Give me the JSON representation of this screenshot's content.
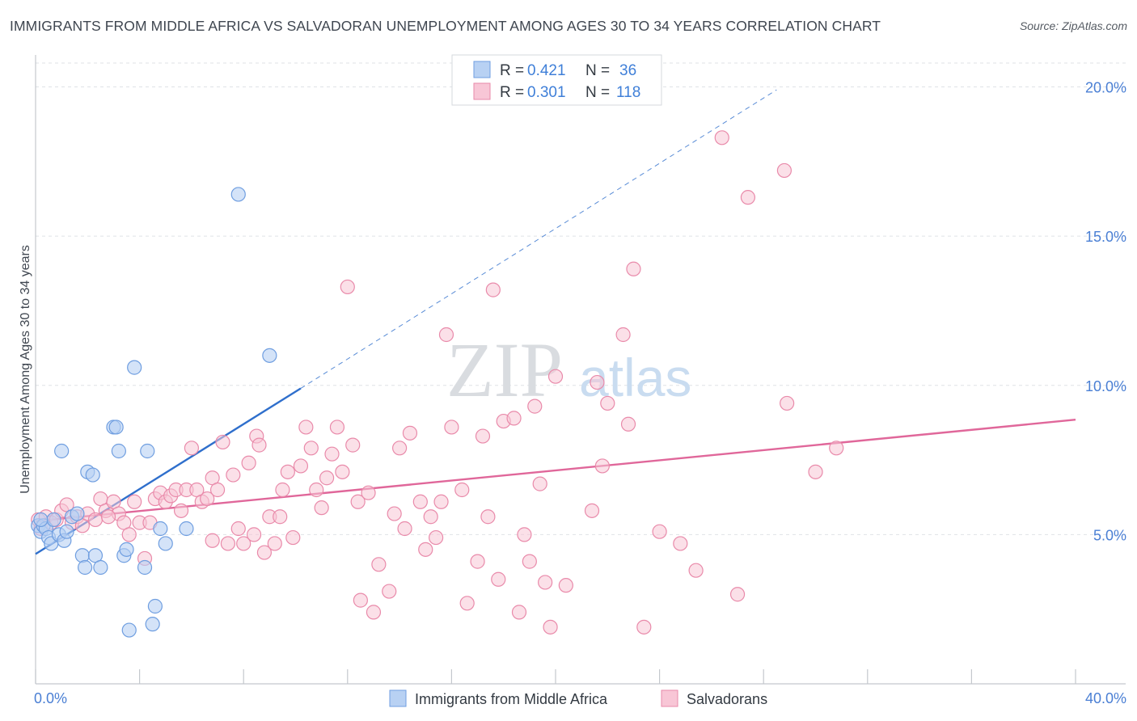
{
  "title": "IMMIGRANTS FROM MIDDLE AFRICA VS SALVADORAN UNEMPLOYMENT AMONG AGES 30 TO 34 YEARS CORRELATION CHART",
  "source": "Source: ZipAtlas.com",
  "watermark": {
    "zip": "ZIP",
    "atlas": "atlas"
  },
  "legend": {
    "r_label": "R =",
    "n_label": "N =",
    "rows": [
      {
        "r": "0.421",
        "n": "36"
      },
      {
        "r": "0.301",
        "n": "118"
      }
    ]
  },
  "colors": {
    "blue_fill": "#b8d1f3",
    "blue_stroke": "#6f9ee0",
    "blue_line": "#2f6fcc",
    "pink_fill": "#f8c6d6",
    "pink_stroke": "#e98aaa",
    "pink_line": "#e0679a",
    "grid": "#dfe2e6",
    "tick_text": "#4a7fd4"
  },
  "chart_data": {
    "type": "scatter",
    "xlabel": "",
    "ylabel": "Unemployment Among Ages 30 to 34 years",
    "xlim": [
      0,
      40
    ],
    "ylim": [
      0,
      20.8
    ],
    "x_tick_labels": [
      {
        "value": 0,
        "label": "0.0%"
      },
      {
        "value": 40,
        "label": "40.0%"
      }
    ],
    "x_minor_ticks": [
      0,
      4,
      8,
      12,
      16,
      20,
      24,
      28,
      32,
      36,
      40
    ],
    "y_ticks": [
      {
        "value": 5,
        "label": "5.0%"
      },
      {
        "value": 10,
        "label": "10.0%"
      },
      {
        "value": 15,
        "label": "15.0%"
      },
      {
        "value": 20,
        "label": "20.0%"
      }
    ],
    "series": [
      {
        "name": "Immigrants from Middle Africa",
        "color": "blue",
        "trend": {
          "x0": 0,
          "y0": 4.35,
          "x1": 10.2,
          "y1": 9.9,
          "dash_to_x": 28.5,
          "dash_to_y": 19.9
        },
        "points": [
          [
            0.1,
            5.3
          ],
          [
            0.2,
            5.1
          ],
          [
            0.3,
            5.3
          ],
          [
            0.4,
            5.2
          ],
          [
            0.5,
            4.9
          ],
          [
            0.6,
            4.7
          ],
          [
            0.7,
            5.5
          ],
          [
            0.9,
            5.0
          ],
          [
            1.0,
            7.8
          ],
          [
            1.1,
            4.8
          ],
          [
            1.4,
            5.6
          ],
          [
            1.6,
            5.7
          ],
          [
            1.8,
            4.3
          ],
          [
            1.9,
            3.9
          ],
          [
            2.0,
            7.1
          ],
          [
            2.2,
            7.0
          ],
          [
            2.3,
            4.3
          ],
          [
            2.5,
            3.9
          ],
          [
            3.0,
            8.6
          ],
          [
            3.1,
            8.6
          ],
          [
            3.2,
            7.8
          ],
          [
            3.4,
            4.3
          ],
          [
            3.5,
            4.5
          ],
          [
            3.8,
            10.6
          ],
          [
            3.6,
            1.8
          ],
          [
            4.2,
            3.9
          ],
          [
            4.3,
            7.8
          ],
          [
            4.6,
            2.6
          ],
          [
            4.8,
            5.2
          ],
          [
            5.0,
            4.7
          ],
          [
            4.5,
            2.0
          ],
          [
            5.8,
            5.2
          ],
          [
            7.8,
            16.4
          ],
          [
            9.0,
            11.0
          ],
          [
            0.2,
            5.5
          ],
          [
            1.2,
            5.1
          ]
        ]
      },
      {
        "name": "Salvadorans",
        "color": "pink",
        "trend": {
          "x0": 0,
          "y0": 5.45,
          "x1": 40,
          "y1": 8.85
        },
        "points": [
          [
            0.1,
            5.5
          ],
          [
            0.2,
            5.2
          ],
          [
            0.4,
            5.6
          ],
          [
            0.6,
            5.4
          ],
          [
            0.8,
            5.5
          ],
          [
            1.0,
            5.8
          ],
          [
            1.2,
            6.0
          ],
          [
            1.4,
            5.4
          ],
          [
            1.6,
            5.6
          ],
          [
            1.8,
            5.3
          ],
          [
            2.0,
            5.7
          ],
          [
            2.3,
            5.5
          ],
          [
            2.5,
            6.2
          ],
          [
            2.7,
            5.8
          ],
          [
            3.0,
            6.1
          ],
          [
            3.2,
            5.7
          ],
          [
            3.4,
            5.4
          ],
          [
            3.6,
            5.0
          ],
          [
            3.8,
            6.1
          ],
          [
            4.0,
            5.4
          ],
          [
            4.2,
            4.2
          ],
          [
            4.4,
            5.4
          ],
          [
            4.6,
            6.2
          ],
          [
            4.8,
            6.4
          ],
          [
            5.0,
            6.1
          ],
          [
            5.2,
            6.3
          ],
          [
            5.4,
            6.5
          ],
          [
            5.6,
            5.8
          ],
          [
            5.8,
            6.5
          ],
          [
            6.0,
            7.9
          ],
          [
            6.2,
            6.5
          ],
          [
            6.4,
            6.1
          ],
          [
            6.6,
            6.2
          ],
          [
            6.8,
            6.9
          ],
          [
            7.0,
            6.5
          ],
          [
            7.2,
            8.1
          ],
          [
            7.4,
            4.7
          ],
          [
            7.6,
            7.0
          ],
          [
            7.8,
            5.2
          ],
          [
            8.0,
            4.7
          ],
          [
            8.2,
            7.4
          ],
          [
            8.5,
            8.3
          ],
          [
            8.6,
            8.0
          ],
          [
            8.8,
            4.4
          ],
          [
            9.0,
            5.6
          ],
          [
            9.2,
            4.7
          ],
          [
            9.5,
            6.5
          ],
          [
            9.7,
            7.1
          ],
          [
            9.9,
            4.9
          ],
          [
            10.2,
            7.3
          ],
          [
            10.4,
            8.6
          ],
          [
            10.6,
            7.9
          ],
          [
            10.8,
            6.5
          ],
          [
            11.0,
            5.9
          ],
          [
            11.2,
            6.9
          ],
          [
            11.4,
            7.7
          ],
          [
            11.6,
            8.6
          ],
          [
            11.8,
            7.1
          ],
          [
            12.0,
            13.3
          ],
          [
            12.2,
            8.0
          ],
          [
            12.4,
            6.1
          ],
          [
            12.8,
            6.4
          ],
          [
            13.2,
            4.0
          ],
          [
            13.6,
            3.1
          ],
          [
            13.8,
            5.7
          ],
          [
            14.0,
            7.9
          ],
          [
            14.2,
            5.2
          ],
          [
            14.4,
            8.4
          ],
          [
            14.8,
            6.1
          ],
          [
            15.0,
            4.5
          ],
          [
            15.2,
            5.6
          ],
          [
            15.4,
            4.9
          ],
          [
            15.6,
            6.1
          ],
          [
            15.8,
            11.7
          ],
          [
            16.0,
            8.6
          ],
          [
            16.4,
            6.5
          ],
          [
            16.6,
            2.7
          ],
          [
            17.0,
            4.1
          ],
          [
            17.2,
            8.3
          ],
          [
            17.4,
            5.6
          ],
          [
            17.6,
            13.2
          ],
          [
            17.8,
            3.5
          ],
          [
            18.0,
            8.8
          ],
          [
            18.4,
            8.9
          ],
          [
            18.8,
            5.0
          ],
          [
            19.0,
            4.1
          ],
          [
            19.2,
            9.3
          ],
          [
            19.4,
            6.7
          ],
          [
            19.6,
            3.4
          ],
          [
            20.0,
            10.3
          ],
          [
            20.4,
            3.3
          ],
          [
            21.4,
            5.8
          ],
          [
            21.6,
            10.1
          ],
          [
            21.8,
            7.3
          ],
          [
            22.0,
            9.4
          ],
          [
            22.6,
            11.7
          ],
          [
            22.8,
            8.7
          ],
          [
            23.0,
            13.9
          ],
          [
            23.4,
            1.9
          ],
          [
            24.0,
            5.1
          ],
          [
            24.8,
            4.7
          ],
          [
            25.4,
            3.8
          ],
          [
            26.4,
            18.3
          ],
          [
            27.0,
            3.0
          ],
          [
            27.4,
            16.3
          ],
          [
            28.8,
            17.2
          ],
          [
            28.9,
            9.4
          ],
          [
            30.0,
            7.1
          ],
          [
            30.8,
            7.9
          ],
          [
            2.8,
            5.6
          ],
          [
            6.8,
            4.8
          ],
          [
            9.4,
            5.6
          ],
          [
            13.0,
            2.4
          ],
          [
            18.6,
            2.4
          ],
          [
            19.8,
            1.9
          ],
          [
            12.5,
            2.8
          ],
          [
            8.4,
            5.0
          ]
        ]
      }
    ]
  },
  "bottom_legend": [
    {
      "label": "Immigrants from Middle Africa",
      "color": "blue"
    },
    {
      "label": "Salvadorans",
      "color": "pink"
    }
  ]
}
